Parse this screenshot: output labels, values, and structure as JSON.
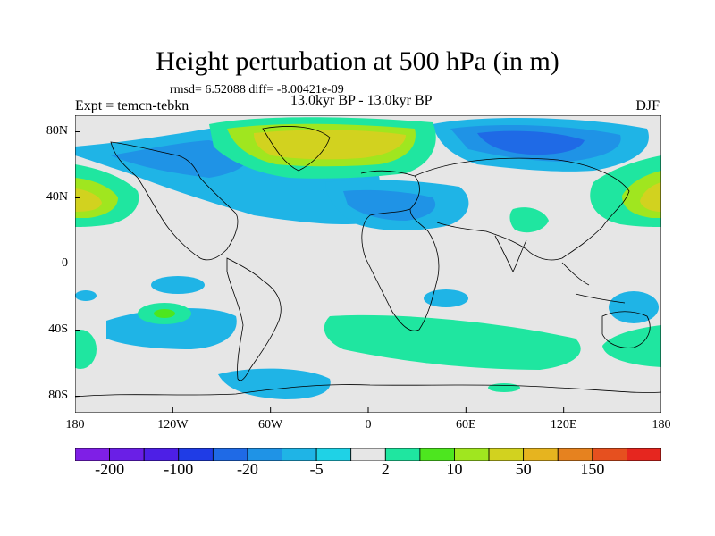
{
  "title": "Height perturbation at 500 hPa (in m)",
  "stats": "rmsd= 6.52088 diff= -8.00421e-09",
  "experiment": "Expt = temcn-tebkn",
  "period": "13.0kyr BP - 13.0kyr BP",
  "season": "DJF",
  "map": {
    "projection": "cylindrical equidistant",
    "background_color": "#e6e6e6",
    "lon_range": [
      -180,
      180
    ],
    "lat_range": [
      -90,
      90
    ],
    "lat_ticks": [
      {
        "lat": 80,
        "label": "80N"
      },
      {
        "lat": 40,
        "label": "40N"
      },
      {
        "lat": 0,
        "label": "0"
      },
      {
        "lat": -40,
        "label": "40S"
      },
      {
        "lat": -80,
        "label": "80S"
      }
    ],
    "lon_ticks": [
      {
        "lon": -180,
        "label": "180"
      },
      {
        "lon": -120,
        "label": "120W"
      },
      {
        "lon": -60,
        "label": "60W"
      },
      {
        "lon": 0,
        "label": "0"
      },
      {
        "lon": 60,
        "label": "60E"
      },
      {
        "lon": 120,
        "label": "120E"
      },
      {
        "lon": 180,
        "label": "180"
      }
    ]
  },
  "colorbar": {
    "colors": [
      "#7f1fe6",
      "#6a1fe6",
      "#4d1fe6",
      "#1f3ce6",
      "#1f6ae6",
      "#1f93e6",
      "#1fb4e6",
      "#1fd2e6",
      "#e6e6e6",
      "#1fe6a0",
      "#4de61f",
      "#a0e61f",
      "#d2d21f",
      "#e6b41f",
      "#e6821f",
      "#e6501f",
      "#e6261f"
    ],
    "labels": [
      {
        "index": 1,
        "text": "-200"
      },
      {
        "index": 3,
        "text": "-100"
      },
      {
        "index": 5,
        "text": "-20"
      },
      {
        "index": 7,
        "text": "-5"
      },
      {
        "index": 9,
        "text": "2"
      },
      {
        "index": 11,
        "text": "10"
      },
      {
        "index": 13,
        "text": "50"
      },
      {
        "index": 15,
        "text": "150"
      }
    ]
  }
}
